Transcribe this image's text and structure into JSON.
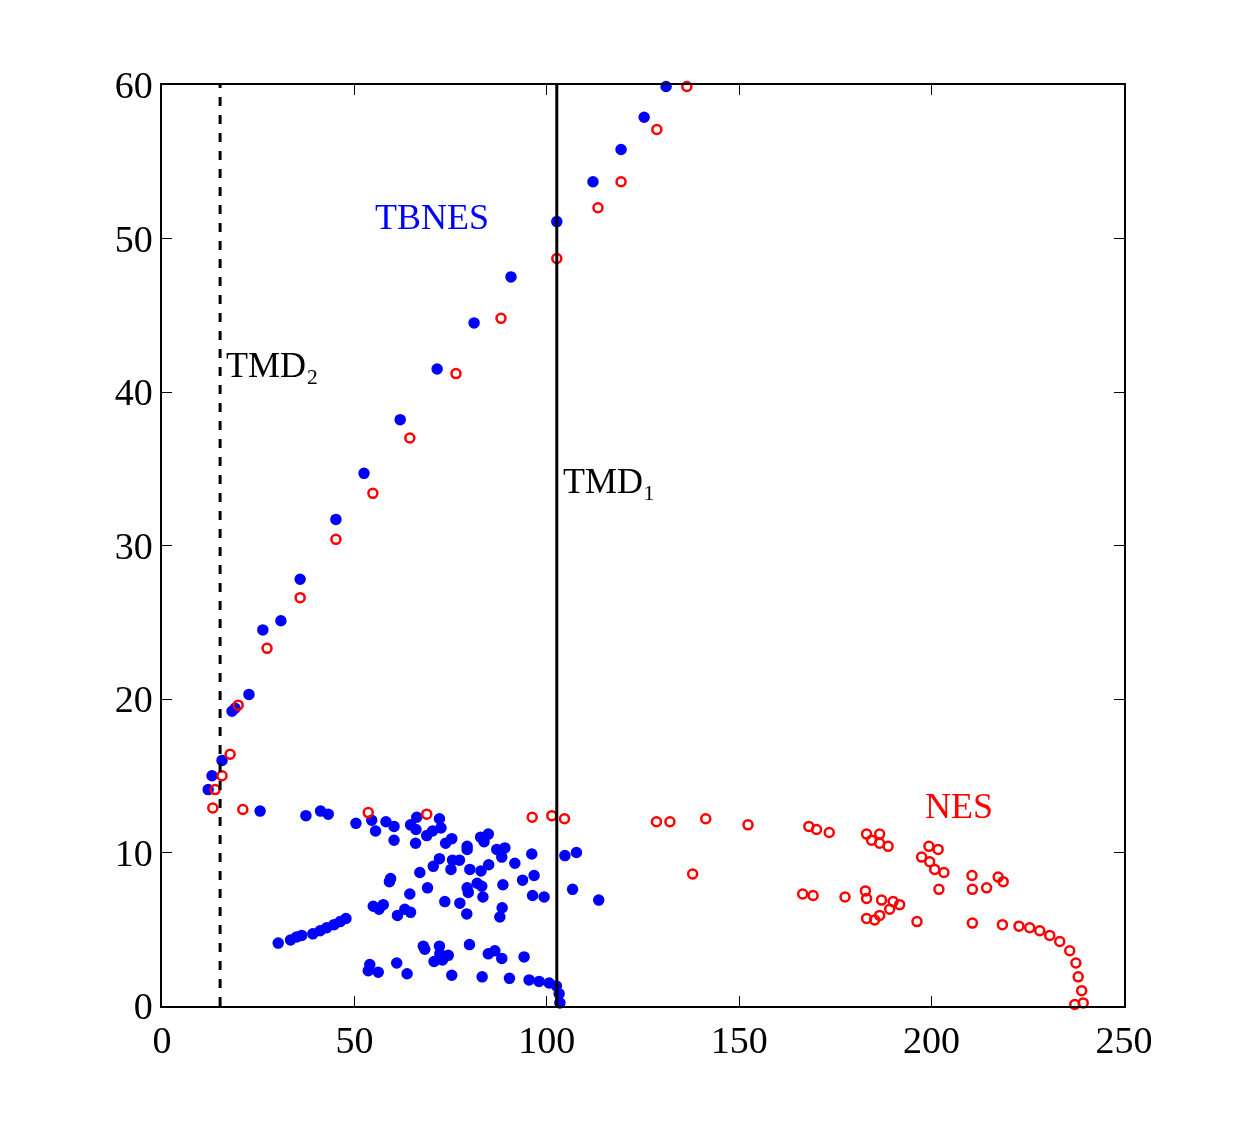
{
  "chart_data": {
    "type": "scatter",
    "xlim": [
      0,
      250
    ],
    "ylim": [
      0,
      60
    ],
    "xticks": [
      0,
      50,
      100,
      150,
      200,
      250
    ],
    "yticks": [
      0,
      10,
      20,
      30,
      40,
      50,
      60
    ],
    "ref_lines": [
      {
        "axis": "x",
        "value": 15.1,
        "label": "TMD₂",
        "line_style": "dashed",
        "color": "#000000"
      },
      {
        "axis": "x",
        "value": 102.6,
        "label": "TMD₁",
        "line_style": "solid",
        "color": "#000000"
      }
    ],
    "series": [
      {
        "name": "TBNES",
        "color": "#0000ff",
        "marker": "circle",
        "x": [
          30.9,
          45.2,
          61.9,
          81.1,
          112.0,
          125.3,
          12.0,
          13.0,
          15.6,
          18.2,
          19.0,
          22.6,
          26.2,
          35.9,
          52.5,
          71.5,
          90.7,
          102.6,
          119.3,
          131.0,
          25.5,
          37.4,
          41.2,
          43.2,
          50.4,
          54.5,
          55.5,
          58.2,
          60.3,
          60.3,
          64.6,
          66.0,
          66.2,
          65.9,
          68.8,
          70.3,
          72.1,
          72.5,
          73.7,
          75.3,
          79.3,
          79.3,
          82.8,
          84.8,
          83.7,
          87.0,
          89.1,
          88.3,
          91.7,
          96.1,
          104.7,
          107.7,
          72.1,
          70.5,
          75.5,
          77.3,
          75.1,
          80.0,
          82.9,
          84.9,
          67.0,
          59.4,
          59.1,
          69.0,
          64.4,
          73.5,
          77.4,
          79.3,
          79.6,
          81.9,
          83.1,
          83.4,
          88.6,
          93.7,
          96.7,
          96.3,
          99.3,
          106.7,
          113.5,
          79.2,
          88.4,
          87.8,
          54.9,
          57.5,
          56.4,
          61.2,
          63.1,
          64.6,
          30.2,
          33.4,
          35.0,
          36.3,
          39.2,
          41.1,
          42.8,
          44.7,
          46.3,
          47.8,
          67.9,
          68.3,
          72.1,
          72.2,
          74.4,
          70.7,
          72.9,
          79.9,
          84.8,
          86.5,
          88.3,
          94.1,
          54.0,
          53.6,
          56.2,
          61.0,
          63.7,
          75.3,
          83.2,
          90.3,
          95.4,
          98.0,
          100.6,
          102.5,
          103.2,
          103.4
        ],
        "values": [
          25.1,
          31.7,
          38.2,
          44.5,
          53.7,
          57.9,
          14.1,
          15.0,
          16.0,
          19.2,
          19.4,
          20.3,
          24.5,
          27.8,
          34.7,
          41.5,
          47.5,
          51.1,
          55.8,
          59.9,
          12.7,
          12.4,
          12.7,
          12.5,
          11.9,
          12.1,
          11.4,
          12.0,
          11.7,
          10.8,
          11.8,
          11.5,
          12.3,
          10.6,
          11.1,
          11.4,
          12.2,
          11.6,
          10.6,
          10.9,
          10.4,
          10.2,
          11.0,
          11.2,
          10.7,
          10.2,
          10.3,
          9.7,
          9.3,
          9.9,
          9.8,
          10.0,
          9.6,
          9.1,
          9.5,
          9.5,
          8.9,
          8.9,
          8.8,
          9.2,
          8.7,
          8.3,
          8.1,
          7.7,
          7.3,
          6.8,
          6.7,
          7.7,
          7.4,
          8.0,
          7.8,
          7.1,
          7.9,
          8.2,
          8.5,
          7.2,
          7.1,
          7.6,
          6.9,
          6.0,
          6.4,
          5.8,
          6.5,
          6.6,
          6.3,
          5.9,
          6.3,
          6.1,
          4.1,
          4.3,
          4.5,
          4.6,
          4.7,
          4.9,
          5.1,
          5.3,
          5.5,
          5.7,
          3.9,
          3.7,
          3.9,
          3.4,
          3.3,
          2.9,
          3.0,
          4.0,
          3.4,
          3.6,
          3.1,
          3.2,
          2.7,
          2.3,
          2.2,
          2.8,
          2.1,
          2.0,
          1.9,
          1.8,
          1.7,
          1.6,
          1.5,
          1.3,
          0.8,
          0.2
        ]
      },
      {
        "name": "NES",
        "color": "#ff0000",
        "marker": "circle-open",
        "x": [
          45.2,
          64.4,
          88.1,
          113.3,
          128.6,
          13.2,
          13.8,
          15.6,
          17.7,
          19.8,
          27.3,
          35.9,
          54.8,
          76.4,
          102.6,
          119.3,
          136.4,
          21.0,
          53.6,
          68.8,
          96.2,
          101.3,
          104.6,
          128.5,
          132.0,
          141.3,
          152.3,
          168.1,
          170.1,
          173.4,
          183.1,
          186.5,
          184.4,
          186.5,
          188.7,
          137.9,
          199.3,
          201.7,
          197.4,
          199.5,
          200.8,
          203.2,
          201.9,
          210.5,
          210.6,
          214.3,
          217.3,
          218.6,
          166.5,
          169.2,
          177.5,
          182.8,
          183.1,
          187.0,
          190.0,
          191.7,
          189.1,
          186.5,
          183.1,
          185.2,
          196.2,
          210.6,
          218.4,
          222.7,
          225.5,
          228.1,
          230.7,
          233.3,
          235.9,
          237.5,
          238.1,
          239.0,
          239.4,
          237.2
        ],
        "values": [
          30.4,
          37.0,
          44.8,
          52.0,
          57.1,
          12.9,
          14.1,
          15.0,
          16.4,
          19.6,
          23.3,
          26.6,
          33.4,
          41.2,
          48.7,
          53.7,
          59.9,
          12.8,
          12.6,
          12.5,
          12.3,
          12.4,
          12.2,
          12.0,
          12.0,
          12.2,
          11.8,
          11.7,
          11.5,
          11.3,
          11.2,
          11.2,
          10.8,
          10.6,
          10.4,
          8.6,
          10.4,
          10.2,
          9.7,
          9.4,
          8.9,
          8.7,
          7.6,
          8.5,
          7.6,
          7.7,
          8.4,
          8.1,
          7.3,
          7.2,
          7.1,
          7.5,
          7.0,
          6.9,
          6.8,
          6.6,
          6.3,
          5.9,
          5.7,
          5.6,
          5.5,
          5.4,
          5.3,
          5.2,
          5.1,
          4.9,
          4.6,
          4.2,
          3.6,
          2.8,
          1.9,
          1.0,
          0.2,
          0.1
        ]
      }
    ]
  }
}
